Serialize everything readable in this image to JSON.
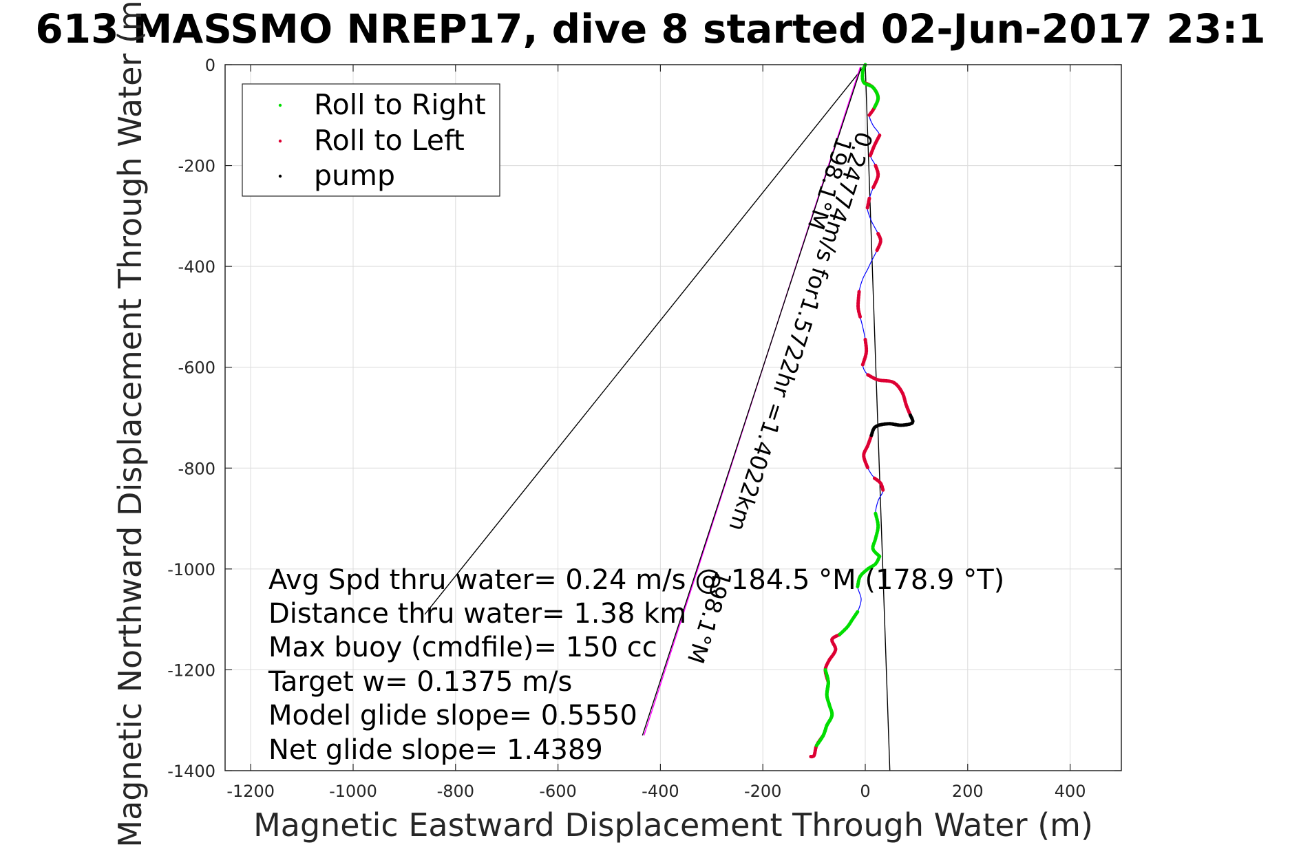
{
  "chart_data": {
    "type": "scatter",
    "title": "613 MASSMO NREP17, dive 8 started 02-Jun-2017 23:1",
    "xlabel": "Magnetic Eastward Displacement Through Water (m)",
    "ylabel": "Magnetic Northward Displacement Through Water (m)",
    "xlim": [
      -1250,
      500
    ],
    "ylim": [
      -1400,
      0
    ],
    "xticks": [
      -1200,
      -1000,
      -800,
      -600,
      -400,
      -200,
      0,
      200,
      400
    ],
    "yticks": [
      0,
      -200,
      -400,
      -600,
      -800,
      -1000,
      -1200,
      -1400
    ],
    "grid": true,
    "legend_position": "top-left",
    "legend": [
      {
        "label": "Roll to Right",
        "color": "#00dd00"
      },
      {
        "label": "Roll to Left",
        "color": "#dd0033"
      },
      {
        "label": "pump",
        "color": "#000000"
      }
    ],
    "track": [
      [
        0,
        0
      ],
      [
        -5,
        -15
      ],
      [
        -3,
        -35
      ],
      [
        15,
        -45
      ],
      [
        25,
        -65
      ],
      [
        18,
        -85
      ],
      [
        8,
        -100
      ],
      [
        15,
        -120
      ],
      [
        28,
        -140
      ],
      [
        18,
        -160
      ],
      [
        10,
        -180
      ],
      [
        20,
        -200
      ],
      [
        25,
        -220
      ],
      [
        15,
        -245
      ],
      [
        8,
        -265
      ],
      [
        4,
        -285
      ],
      [
        12,
        -310
      ],
      [
        25,
        -335
      ],
      [
        30,
        -350
      ],
      [
        22,
        -370
      ],
      [
        12,
        -390
      ],
      [
        5,
        -405
      ],
      [
        -5,
        -425
      ],
      [
        -12,
        -450
      ],
      [
        -14,
        -480
      ],
      [
        -10,
        -500
      ],
      [
        -5,
        -520
      ],
      [
        0,
        -545
      ],
      [
        2,
        -570
      ],
      [
        -5,
        -595
      ],
      [
        5,
        -615
      ],
      [
        25,
        -625
      ],
      [
        55,
        -630
      ],
      [
        72,
        -650
      ],
      [
        80,
        -675
      ],
      [
        88,
        -695
      ],
      [
        92,
        -710
      ],
      [
        70,
        -715
      ],
      [
        45,
        -712
      ],
      [
        20,
        -718
      ],
      [
        12,
        -735
      ],
      [
        5,
        -755
      ],
      [
        -3,
        -775
      ],
      [
        5,
        -800
      ],
      [
        18,
        -820
      ],
      [
        30,
        -830
      ],
      [
        35,
        -845
      ],
      [
        25,
        -865
      ],
      [
        20,
        -890
      ],
      [
        25,
        -915
      ],
      [
        20,
        -940
      ],
      [
        15,
        -960
      ],
      [
        28,
        -975
      ],
      [
        20,
        -990
      ],
      [
        5,
        -1000
      ],
      [
        -10,
        -1015
      ],
      [
        -15,
        -1035
      ],
      [
        -8,
        -1060
      ],
      [
        -15,
        -1085
      ],
      [
        -25,
        -1100
      ],
      [
        -35,
        -1115
      ],
      [
        -50,
        -1130
      ],
      [
        -65,
        -1140
      ],
      [
        -58,
        -1160
      ],
      [
        -70,
        -1180
      ],
      [
        -78,
        -1200
      ],
      [
        -72,
        -1225
      ],
      [
        -75,
        -1250
      ],
      [
        -70,
        -1270
      ],
      [
        -65,
        -1290
      ],
      [
        -75,
        -1310
      ],
      [
        -82,
        -1330
      ],
      [
        -95,
        -1350
      ],
      [
        -100,
        -1370
      ],
      [
        -108,
        -1372
      ]
    ],
    "roll_right_segments": [
      [
        0,
        5
      ],
      [
        65,
        72
      ],
      [
        48,
        52
      ],
      [
        52,
        56
      ],
      [
        58,
        61
      ],
      [
        66,
        70
      ],
      [
        70,
        72
      ]
    ],
    "roll_left_segments": [
      [
        2,
        6
      ],
      [
        8,
        10
      ],
      [
        11,
        13
      ],
      [
        14,
        15
      ],
      [
        17,
        19
      ],
      [
        23,
        25
      ],
      [
        27,
        29
      ],
      [
        30,
        35
      ],
      [
        40,
        43
      ],
      [
        44,
        46
      ],
      [
        61,
        64
      ],
      [
        64,
        66
      ],
      [
        71,
        75
      ]
    ],
    "pump_segments": [
      [
        35,
        40
      ]
    ],
    "lines": [
      {
        "name": "black-ray-left",
        "points": [
          [
            0,
            0
          ],
          [
            -860,
            -1090
          ]
        ],
        "color": "#000000"
      },
      {
        "name": "black-line-right",
        "points": [
          [
            0,
            0
          ],
          [
            48,
            -1400
          ]
        ],
        "color": "#000000"
      },
      {
        "name": "magenta-line",
        "points": [
          [
            -10,
            -5
          ],
          [
            -432,
            -1330
          ]
        ],
        "color": "#ff00ff"
      },
      {
        "name": "black-line-near-magenta",
        "points": [
          [
            -8,
            -5
          ],
          [
            -435,
            -1330
          ]
        ],
        "color": "#000000"
      }
    ],
    "rotated_labels": [
      {
        "text": "0.24774m/s for1.5722hr =1.4022km",
        "x": -15,
        "y": -130
      },
      {
        "text": "198.1°M",
        "x": -55,
        "y": -140
      },
      {
        "text": "198.1°M",
        "x": -290,
        "y": -1000
      }
    ],
    "annotations": [
      "Avg Spd thru water=  0.24 m/s @ 184.5 °M (178.9 °T)",
      "Distance thru water=  1.38 km",
      "Max buoy (cmdfile)= 150 cc",
      "Target w= 0.1375 m/s",
      "Model glide slope= 0.5550",
      "Net glide slope= 1.4389"
    ]
  }
}
